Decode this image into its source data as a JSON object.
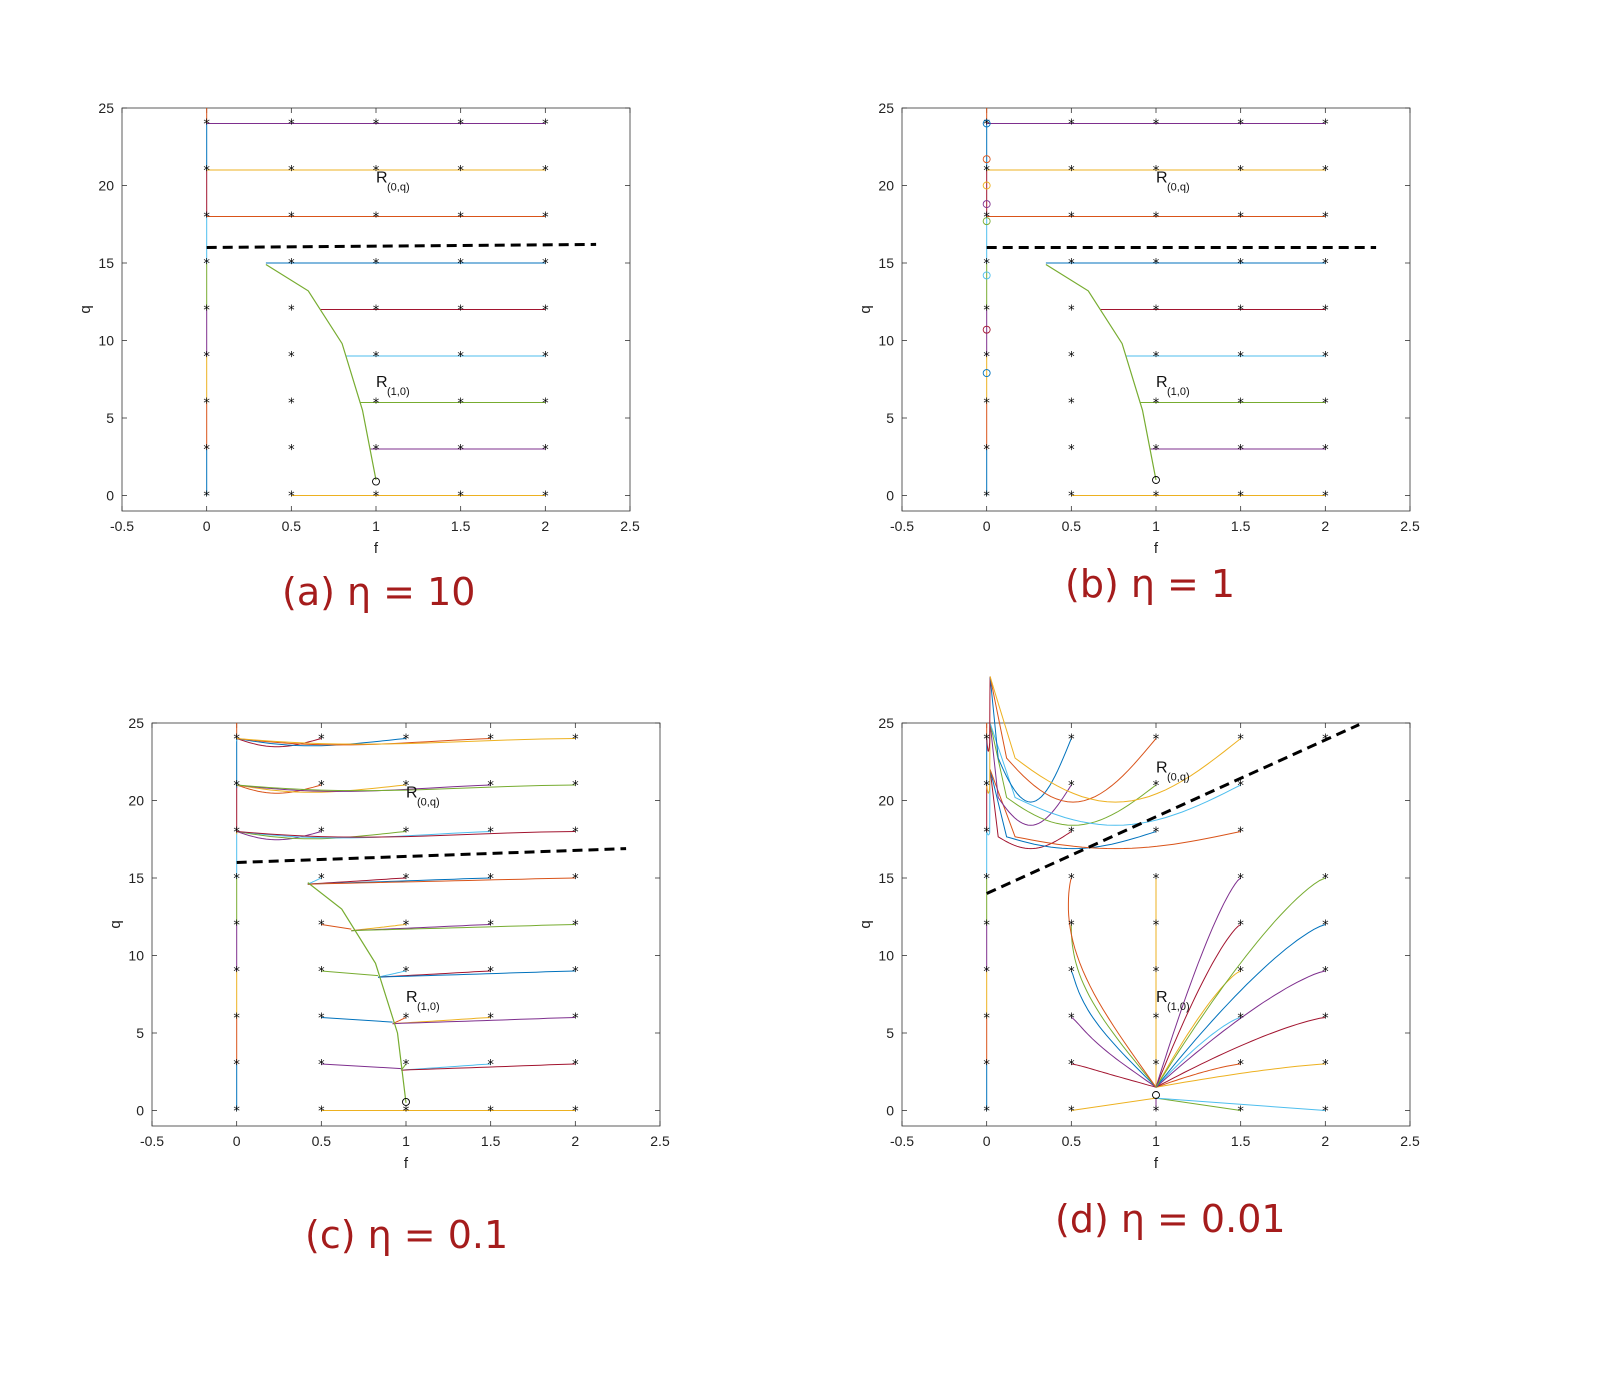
{
  "chart_data": [
    {
      "type": "line",
      "caption": "(a) η = 10",
      "eta": 10,
      "xlabel": "f",
      "ylabel": "q",
      "xlim": [
        -0.5,
        2.5
      ],
      "ylim": [
        -1,
        25
      ],
      "xticks": [
        "-0.5",
        "0",
        "0.5",
        "1",
        "1.5",
        "2",
        "2.5"
      ],
      "yticks": [
        "0",
        "5",
        "10",
        "15",
        "20",
        "25"
      ],
      "regions": [
        {
          "name": "R",
          "sub": "(0,q)",
          "x": 1.0,
          "y": 20.2
        },
        {
          "name": "R",
          "sub": "(1,0)",
          "x": 1.0,
          "y": 7.0
        }
      ],
      "separatrix": [
        [
          0,
          16.0
        ],
        [
          2.3,
          16.2
        ]
      ],
      "start_points_f": [
        0,
        0.5,
        1,
        1.5,
        2
      ],
      "start_points_q": [
        0,
        3,
        6,
        9,
        12,
        15,
        18,
        21,
        24
      ],
      "critical_curve": [
        [
          0.35,
          14.9
        ],
        [
          0.6,
          13.2
        ],
        [
          0.8,
          9.8
        ],
        [
          0.92,
          5.5
        ],
        [
          1.0,
          1.0
        ]
      ],
      "equilibrium_circles": [
        [
          1.0,
          0.9
        ]
      ],
      "axis_circles": []
    },
    {
      "type": "line",
      "caption": "(b) η = 1",
      "eta": 1,
      "xlabel": "f",
      "ylabel": "q",
      "xlim": [
        -0.5,
        2.5
      ],
      "ylim": [
        -1,
        25
      ],
      "xticks": [
        "-0.5",
        "0",
        "0.5",
        "1",
        "1.5",
        "2",
        "2.5"
      ],
      "yticks": [
        "0",
        "5",
        "10",
        "15",
        "20",
        "25"
      ],
      "regions": [
        {
          "name": "R",
          "sub": "(0,q)",
          "x": 1.0,
          "y": 20.2
        },
        {
          "name": "R",
          "sub": "(1,0)",
          "x": 1.0,
          "y": 7.0
        }
      ],
      "separatrix": [
        [
          0,
          16.0
        ],
        [
          2.3,
          16.0
        ]
      ],
      "start_points_f": [
        0,
        0.5,
        1,
        1.5,
        2
      ],
      "start_points_q": [
        0,
        3,
        6,
        9,
        12,
        15,
        18,
        21,
        24
      ],
      "critical_curve": [
        [
          0.35,
          14.9
        ],
        [
          0.6,
          13.2
        ],
        [
          0.8,
          9.8
        ],
        [
          0.92,
          5.5
        ],
        [
          1.0,
          1.0
        ]
      ],
      "equilibrium_circles": [
        [
          1.0,
          1.0
        ]
      ],
      "axis_circles": [
        24.0,
        21.7,
        20.0,
        18.8,
        17.7,
        14.2,
        10.7,
        7.9
      ]
    },
    {
      "type": "line",
      "caption": "(c) η = 0.1",
      "eta": 0.1,
      "xlabel": "f",
      "ylabel": "q",
      "xlim": [
        -0.5,
        2.5
      ],
      "ylim": [
        -1,
        25
      ],
      "xticks": [
        "-0.5",
        "0",
        "0.5",
        "1",
        "1.5",
        "2",
        "2.5"
      ],
      "yticks": [
        "0",
        "5",
        "10",
        "15",
        "20",
        "25"
      ],
      "regions": [
        {
          "name": "R",
          "sub": "(0,q)",
          "x": 1.0,
          "y": 20.2
        },
        {
          "name": "R",
          "sub": "(1,0)",
          "x": 1.0,
          "y": 7.0
        }
      ],
      "separatrix": [
        [
          0,
          16.0
        ],
        [
          2.3,
          16.9
        ]
      ],
      "start_points_f": [
        0,
        0.5,
        1,
        1.5,
        2
      ],
      "start_points_q": [
        0,
        3,
        6,
        9,
        12,
        15,
        18,
        21,
        24
      ],
      "critical_curve": [
        [
          0.42,
          14.7
        ],
        [
          0.62,
          13.0
        ],
        [
          0.82,
          9.5
        ],
        [
          0.95,
          5.0
        ],
        [
          1.0,
          0.5
        ]
      ],
      "equilibrium_circles": [
        [
          1.0,
          0.55
        ]
      ],
      "axis_circles": []
    },
    {
      "type": "line",
      "caption": "(d) η = 0.01",
      "eta": 0.01,
      "xlabel": "f",
      "ylabel": "q",
      "xlim": [
        -0.5,
        2.5
      ],
      "ylim": [
        -1,
        25
      ],
      "xticks": [
        "-0.5",
        "0",
        "0.5",
        "1",
        "1.5",
        "2",
        "2.5"
      ],
      "yticks": [
        "0",
        "5",
        "10",
        "15",
        "20",
        "25"
      ],
      "regions": [
        {
          "name": "R",
          "sub": "(0,q)",
          "x": 1.0,
          "y": 21.8
        },
        {
          "name": "R",
          "sub": "(1,0)",
          "x": 1.0,
          "y": 7.0
        }
      ],
      "separatrix": [
        [
          0,
          14.0
        ],
        [
          2.2,
          24.9
        ]
      ],
      "start_points_f": [
        0,
        0.5,
        1,
        1.5,
        2
      ],
      "start_points_q": [
        0,
        3,
        6,
        9,
        12,
        15,
        18,
        21,
        24
      ],
      "critical_curve": [],
      "equilibrium_circles": [
        [
          1.0,
          1.0
        ]
      ],
      "axis_circles": []
    }
  ],
  "colors": [
    "#0072bd",
    "#d95319",
    "#edb120",
    "#7e2f8e",
    "#77ac30",
    "#4dbeee",
    "#a2142f"
  ]
}
